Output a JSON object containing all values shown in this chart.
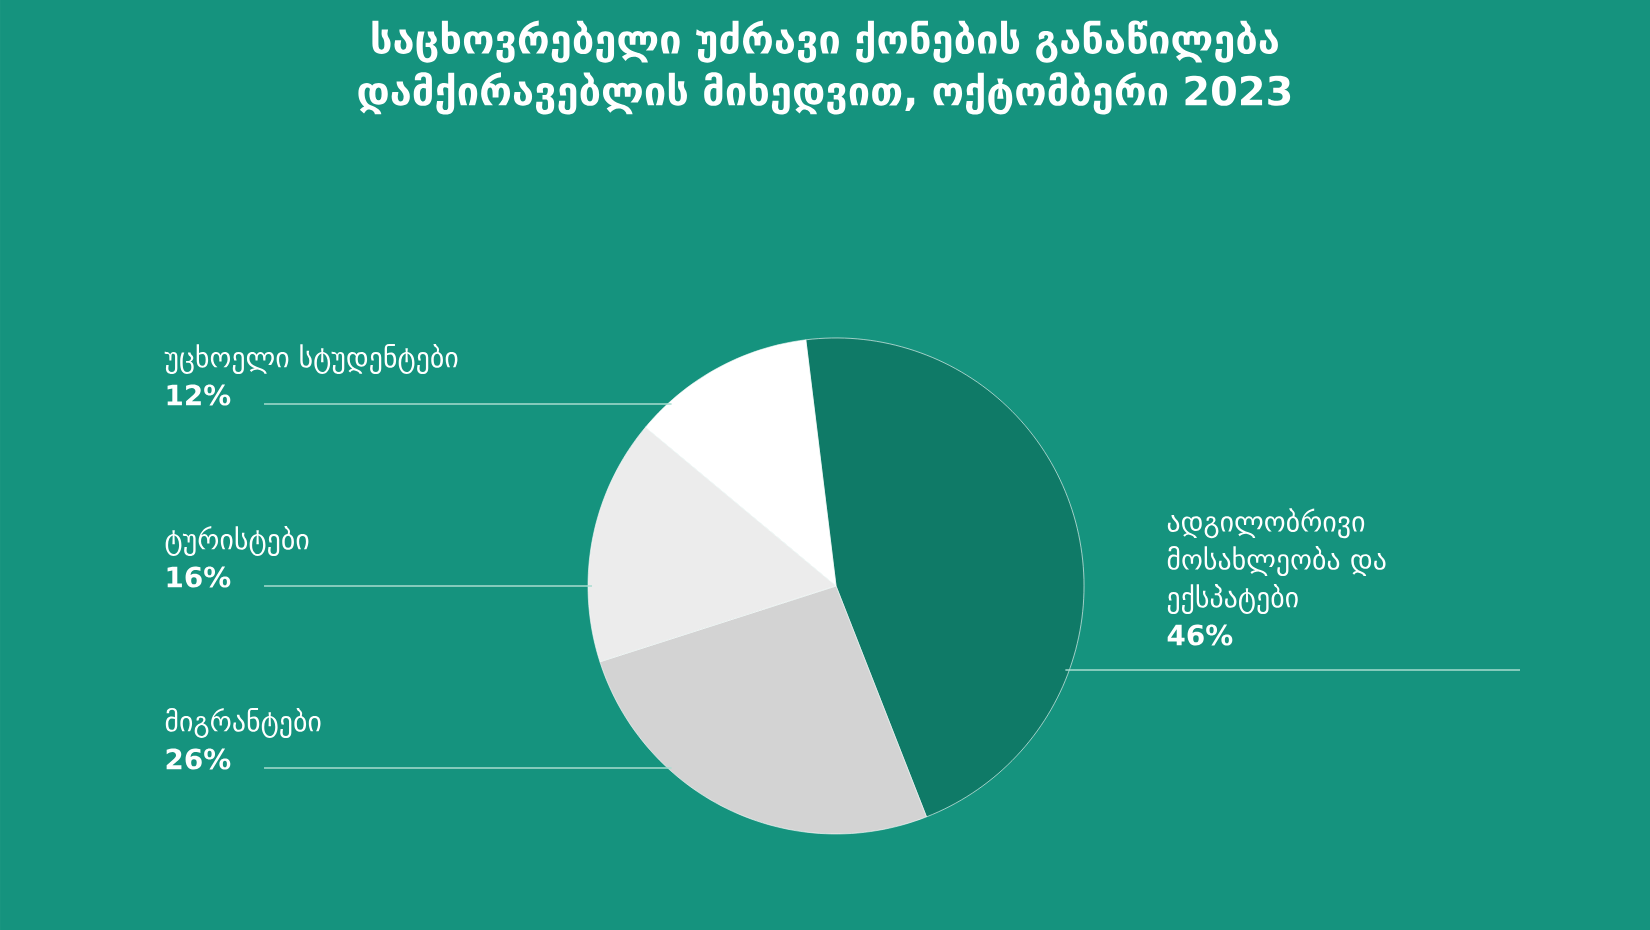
{
  "chart_data": {
    "type": "pie",
    "title": "საცხოვრებელი უძრავი ქონების განაწილება დამქირავებლის მიხედვით, ოქტომბერი 2023",
    "categories": [
      "ადგილობრივი მოსახლეობა და ექსპატები",
      "მიგრანტები",
      "ტურისტები",
      "უცხოელი სტუდენტები"
    ],
    "values": [
      46,
      26,
      16,
      12
    ],
    "colors": [
      "#0f7a67",
      "#d3d3d3",
      "#ececec",
      "#ffffff"
    ],
    "value_labels": [
      "46%",
      "26%",
      "16%",
      "12%"
    ]
  }
}
